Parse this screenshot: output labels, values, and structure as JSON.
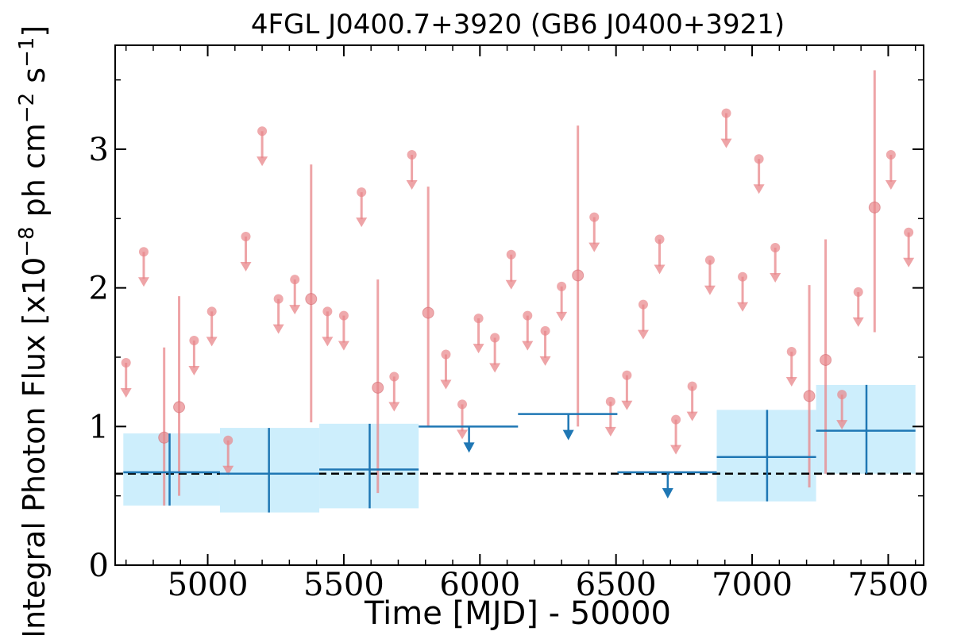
{
  "chart_data": {
    "type": "scatter",
    "title": "4FGL J0400.7+3920 (GB6 J0400+3921)",
    "xlabel": "Time [MJD] - 50000",
    "ylabel": "Integral Photon Flux [x10",
    "ylabel_exp1": "−8",
    "ylabel_mid": " ph cm",
    "ylabel_exp2": "−2",
    "ylabel_mid2": " s",
    "ylabel_exp3": "−1",
    "ylabel_end": "]",
    "xlim": [
      4660,
      7630
    ],
    "ylim": [
      0,
      3.75
    ],
    "xticks": [
      5000,
      5500,
      6000,
      6500,
      7000,
      7500
    ],
    "xtick_labels": [
      "5000",
      "5500",
      "6000",
      "6500",
      "7000",
      "7500"
    ],
    "yticks": [
      0,
      1,
      2,
      3
    ],
    "ytick_labels": [
      "0",
      "1",
      "2",
      "3"
    ],
    "baseline_flux": 0.66,
    "colors": {
      "short_bins": "#e8868a",
      "long_bins": "#1f77b4",
      "long_bins_band": "#cdeefc",
      "baseline": "#000000"
    },
    "series": [
      {
        "detections": [
          {
            "x": 4840,
            "y": 0.92,
            "lo": 0.43,
            "hi": 1.57
          },
          {
            "x": 4895,
            "y": 1.14,
            "lo": 0.5,
            "hi": 1.94
          },
          {
            "x": 5380,
            "y": 1.92,
            "lo": 1.03,
            "hi": 2.89
          },
          {
            "x": 5625,
            "y": 1.28,
            "lo": 0.52,
            "hi": 2.06
          },
          {
            "x": 5810,
            "y": 1.82,
            "lo": 1.0,
            "hi": 2.73
          },
          {
            "x": 6360,
            "y": 2.09,
            "lo": 1.0,
            "hi": 3.17
          },
          {
            "x": 7210,
            "y": 1.22,
            "lo": 0.56,
            "hi": 2.02
          },
          {
            "x": 7270,
            "y": 1.48,
            "lo": 0.66,
            "hi": 2.35
          },
          {
            "x": 7450,
            "y": 2.58,
            "lo": 1.68,
            "hi": 3.57
          }
        ],
        "upper_limits": [
          {
            "x": 4700,
            "y": 1.46
          },
          {
            "x": 4765,
            "y": 2.26
          },
          {
            "x": 4950,
            "y": 1.62
          },
          {
            "x": 5015,
            "y": 1.83
          },
          {
            "x": 5075,
            "y": 0.9
          },
          {
            "x": 5140,
            "y": 2.37
          },
          {
            "x": 5200,
            "y": 3.13
          },
          {
            "x": 5260,
            "y": 1.92
          },
          {
            "x": 5320,
            "y": 2.06
          },
          {
            "x": 5440,
            "y": 1.83
          },
          {
            "x": 5500,
            "y": 1.8
          },
          {
            "x": 5565,
            "y": 2.69
          },
          {
            "x": 5685,
            "y": 1.36
          },
          {
            "x": 5750,
            "y": 2.96
          },
          {
            "x": 5875,
            "y": 1.52
          },
          {
            "x": 5935,
            "y": 1.16
          },
          {
            "x": 5995,
            "y": 1.78
          },
          {
            "x": 6055,
            "y": 1.64
          },
          {
            "x": 6115,
            "y": 2.24
          },
          {
            "x": 6175,
            "y": 1.8
          },
          {
            "x": 6240,
            "y": 1.69
          },
          {
            "x": 6300,
            "y": 2.01
          },
          {
            "x": 6420,
            "y": 2.51
          },
          {
            "x": 6480,
            "y": 1.18
          },
          {
            "x": 6540,
            "y": 1.37
          },
          {
            "x": 6600,
            "y": 1.88
          },
          {
            "x": 6660,
            "y": 2.35
          },
          {
            "x": 6720,
            "y": 1.05
          },
          {
            "x": 6780,
            "y": 1.29
          },
          {
            "x": 6845,
            "y": 2.2
          },
          {
            "x": 6905,
            "y": 3.26
          },
          {
            "x": 6965,
            "y": 2.08
          },
          {
            "x": 7025,
            "y": 2.93
          },
          {
            "x": 7085,
            "y": 2.29
          },
          {
            "x": 7145,
            "y": 1.54
          },
          {
            "x": 7330,
            "y": 1.23
          },
          {
            "x": 7390,
            "y": 1.97
          },
          {
            "x": 7510,
            "y": 2.96
          },
          {
            "x": 7575,
            "y": 2.4
          }
        ]
      },
      {
        "detections": [
          {
            "x": 4860,
            "xlo": 4690,
            "xhi": 5045,
            "y": 0.67,
            "lo": 0.43,
            "hi": 0.95
          },
          {
            "x": 5225,
            "xlo": 5045,
            "xhi": 5410,
            "y": 0.66,
            "lo": 0.38,
            "hi": 0.99
          },
          {
            "x": 5595,
            "xlo": 5410,
            "xhi": 5775,
            "y": 0.69,
            "lo": 0.41,
            "hi": 1.02
          },
          {
            "x": 7055,
            "xlo": 6870,
            "xhi": 7235,
            "y": 0.78,
            "lo": 0.46,
            "hi": 1.12
          },
          {
            "x": 7420,
            "xlo": 7235,
            "xhi": 7600,
            "y": 0.97,
            "lo": 0.66,
            "hi": 1.3
          }
        ],
        "upper_limits": [
          {
            "x": 5960,
            "xlo": 5775,
            "xhi": 6140,
            "y": 1.0
          },
          {
            "x": 6325,
            "xlo": 6140,
            "xhi": 6505,
            "y": 1.09
          },
          {
            "x": 6690,
            "xlo": 6505,
            "xhi": 6870,
            "y": 0.67
          }
        ]
      }
    ]
  }
}
